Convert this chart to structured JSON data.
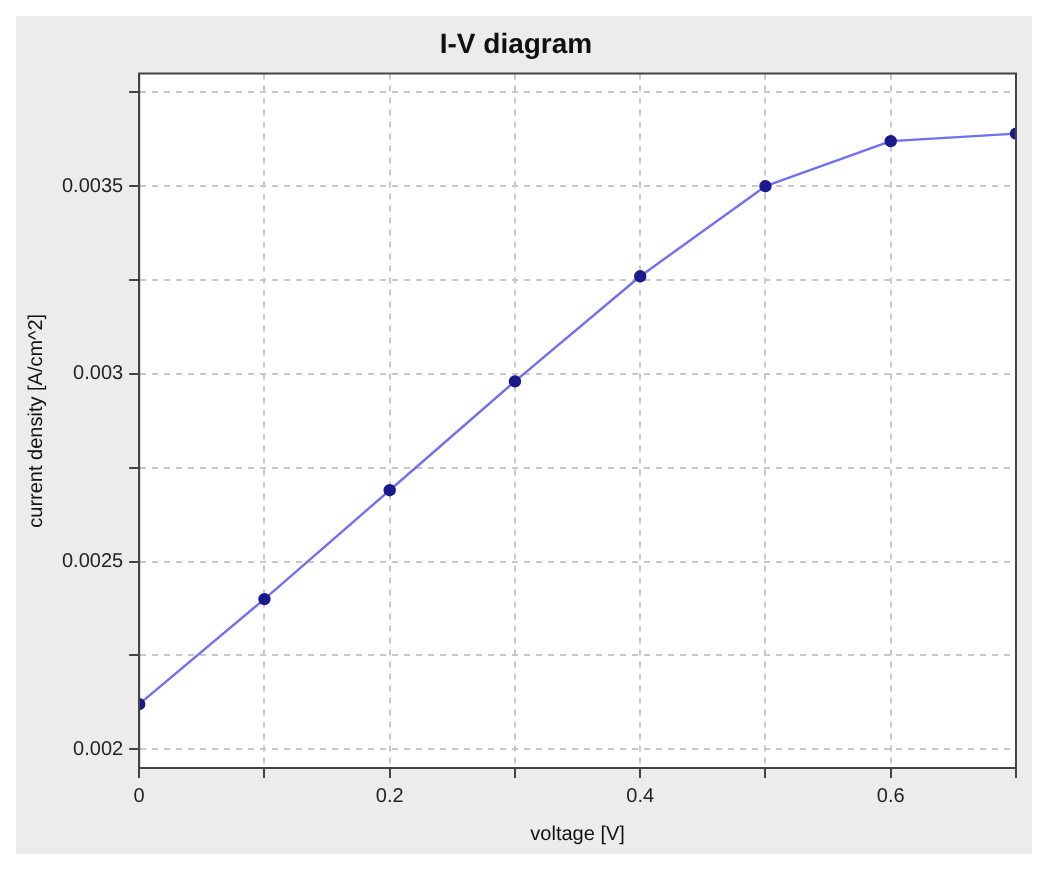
{
  "chart_data": {
    "type": "line",
    "title": "I-V diagram",
    "xlabel": "voltage [V]",
    "ylabel": "current density [A/cm^2]",
    "x": [
      0,
      0.1,
      0.2,
      0.3,
      0.4,
      0.5,
      0.6,
      0.7
    ],
    "series": [
      {
        "color": "#7070f0",
        "values": [
          0.00212,
          0.0024,
          0.00269,
          0.00298,
          0.00326,
          0.0035,
          0.00362,
          0.00364
        ]
      }
    ],
    "xlim": [
      0,
      0.7
    ],
    "xticks": [
      0,
      {
        "value": 0.1,
        "label": null
      },
      0.2,
      {
        "value": 0.3,
        "label": null
      },
      0.4,
      {
        "value": 0.5,
        "label": null
      },
      0.6,
      {
        "value": 0.7,
        "label": null
      }
    ],
    "ylim": [
      0.00195,
      0.0038
    ],
    "yticks": [
      0.002,
      {
        "value": 0.00225,
        "label": null
      },
      0.0025,
      {
        "value": 0.00275,
        "label": null
      },
      0.003,
      {
        "value": 0.00325,
        "label": null
      },
      0.0035,
      {
        "value": 0.00375,
        "label": null
      }
    ],
    "grid": true,
    "marker": "circle",
    "line_style": "solid",
    "legend": false
  }
}
